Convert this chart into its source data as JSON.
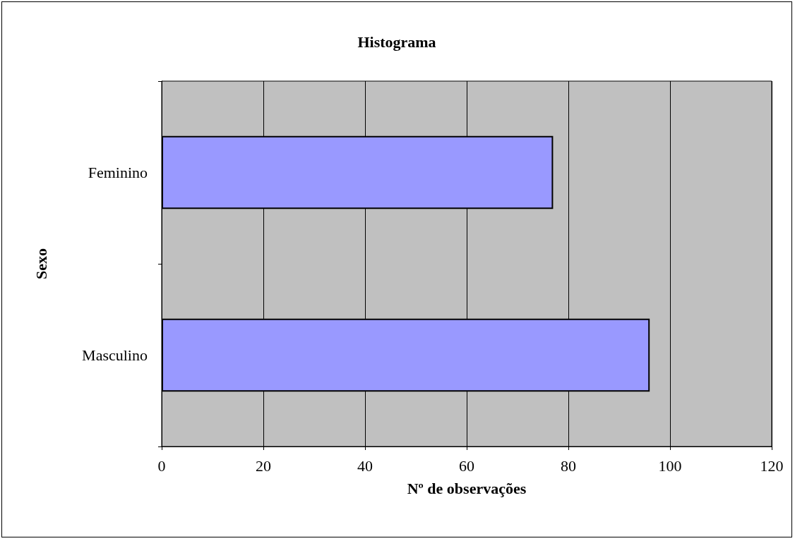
{
  "chart_data": {
    "type": "bar",
    "title": "Histograma",
    "xlabel": "Nº de observações",
    "ylabel": "Sexo",
    "orientation": "horizontal",
    "categories": [
      "Feminino",
      "Masculino"
    ],
    "values": [
      77,
      96
    ],
    "color": "#9999ff",
    "xlim": [
      0,
      120
    ],
    "xticks": [
      0,
      20,
      40,
      60,
      80,
      100,
      120
    ],
    "grid": "x"
  }
}
